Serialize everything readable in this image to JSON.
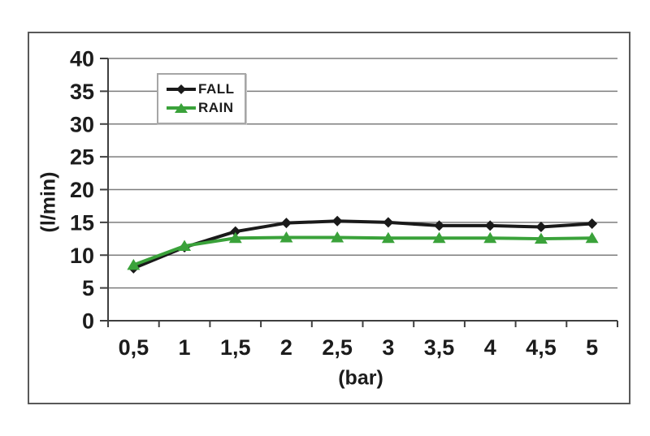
{
  "chart_data": {
    "type": "line",
    "title": "",
    "xlabel": "(bar)",
    "ylabel": "(l/min)",
    "categories": [
      "0,5",
      "1",
      "1,5",
      "2",
      "2,5",
      "3",
      "3,5",
      "4",
      "4,5",
      "5"
    ],
    "series": [
      {
        "name": "FALL",
        "color": "#1a1a1a",
        "marker": "diamond",
        "values": [
          8.0,
          11.2,
          13.6,
          14.9,
          15.2,
          15.0,
          14.5,
          14.5,
          14.3,
          14.8
        ]
      },
      {
        "name": "RAIN",
        "color": "#3aa23a",
        "marker": "triangle",
        "values": [
          8.5,
          11.4,
          12.6,
          12.7,
          12.7,
          12.6,
          12.6,
          12.6,
          12.5,
          12.6
        ]
      }
    ],
    "ylim": [
      0,
      40
    ],
    "ytick_step": 5,
    "grid": true,
    "legend_position": "inside-top-center",
    "grid_color": "#7d7d7d",
    "axis_color": "#3f3f3f",
    "frame_color": "#595959"
  }
}
